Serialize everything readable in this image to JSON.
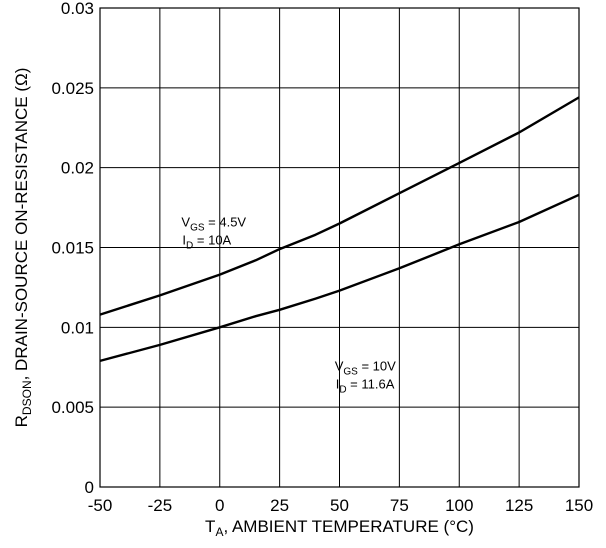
{
  "chart_data": {
    "type": "line",
    "xlabel": {
      "main": "T",
      "sub": "A",
      "rest": ", AMBIENT TEMPERATURE (°C)"
    },
    "ylabel": {
      "main": "R",
      "sub": "DSON",
      "rest": ", DRAIN-SOURCE ON-RESISTANCE (Ω)"
    },
    "xlim": [
      -50,
      150
    ],
    "ylim": [
      0,
      0.03
    ],
    "xticks": [
      "-50",
      "-25",
      "0",
      "25",
      "50",
      "75",
      "100",
      "125",
      "150"
    ],
    "yticks": [
      "0",
      "0.005",
      "0.01",
      "0.015",
      "0.02",
      "0.025",
      "0.03"
    ],
    "grid": true,
    "series": [
      {
        "x": [
          -50,
          -25,
          0,
          15,
          25,
          40,
          50,
          75,
          100,
          125,
          150
        ],
        "y": [
          0.0108,
          0.012,
          0.0133,
          0.0142,
          0.0149,
          0.0158,
          0.0165,
          0.0184,
          0.0203,
          0.0222,
          0.0244
        ]
      },
      {
        "x": [
          -50,
          -25,
          0,
          15,
          25,
          40,
          50,
          75,
          100,
          125,
          150
        ],
        "y": [
          0.0079,
          0.0089,
          0.01,
          0.0107,
          0.0111,
          0.0118,
          0.0123,
          0.0137,
          0.0152,
          0.0166,
          0.0183
        ]
      }
    ],
    "annotations": [
      {
        "lines": [
          {
            "main": "V",
            "sub": "GS",
            "rest": " = 4.5V"
          },
          {
            "main": "I",
            "sub": "D",
            "rest": " = 10A"
          }
        ],
        "x": -16,
        "y": 0.0163
      },
      {
        "lines": [
          {
            "main": "V",
            "sub": "GS",
            "rest": " = 10V"
          },
          {
            "main": "I",
            "sub": "D",
            "rest": " = 11.6A"
          }
        ],
        "x": 48,
        "y": 0.0073
      }
    ]
  }
}
